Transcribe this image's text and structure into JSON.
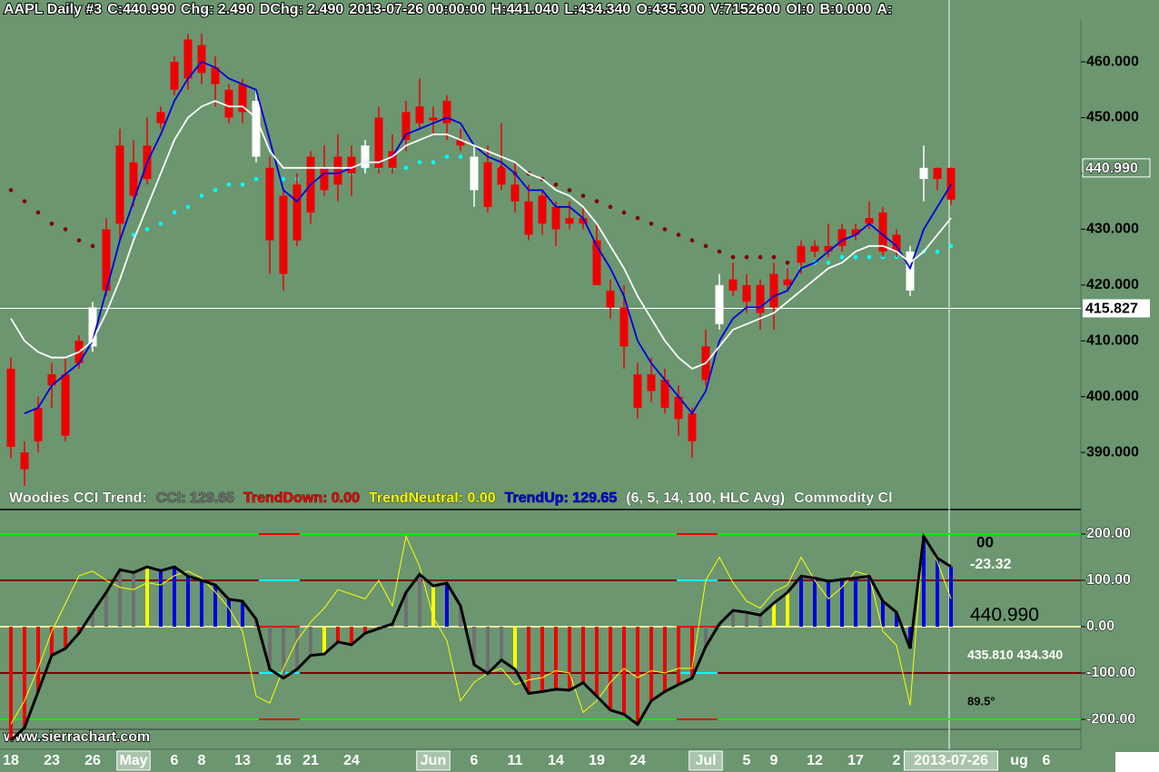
{
  "chart_data": [
    {
      "type": "candlestick",
      "header": [
        "AAPL  Daily  #3",
        "C:440.990",
        "Chg: 2.490",
        "DChg: 2.490",
        "2013-07-26 00:00:00",
        "H:441.040",
        "L:434.340",
        "O:435.300",
        "V:7152600",
        "OI:0",
        "B:0.000",
        "A:"
      ],
      "categories": [
        "18",
        null,
        null,
        "23",
        null,
        null,
        "26",
        null,
        null,
        "May",
        null,
        null,
        "6",
        null,
        "8",
        null,
        null,
        "13",
        null,
        null,
        "16",
        null,
        "21",
        null,
        null,
        "24",
        null,
        null,
        null,
        null,
        null,
        "Jun",
        null,
        null,
        "6",
        null,
        null,
        "11",
        null,
        null,
        "14",
        null,
        null,
        "19",
        null,
        null,
        "24",
        null,
        null,
        null,
        null,
        "Jul",
        null,
        null,
        "5",
        null,
        "9",
        null,
        null,
        "12",
        null,
        null,
        "17",
        null,
        null,
        "2",
        null,
        null,
        null,
        "2013-07-26"
      ],
      "future_labels": [
        "ug",
        "6"
      ],
      "open": [
        391,
        387,
        392,
        402,
        393,
        406,
        416,
        419,
        431,
        436,
        439,
        449,
        455,
        457,
        458,
        456,
        450,
        451,
        453,
        428,
        422,
        428,
        433,
        437,
        438,
        440,
        445,
        441,
        441,
        446,
        449,
        449.5,
        449,
        445,
        443,
        434,
        438,
        435,
        429,
        431,
        430,
        431,
        431,
        420,
        416,
        409,
        398,
        401,
        398,
        396,
        392,
        403,
        420,
        419,
        417,
        415,
        416,
        420,
        424,
        426,
        426,
        427,
        429,
        431,
        426,
        426,
        426,
        441,
        439,
        435.3
      ],
      "high": [
        407,
        392,
        400,
        406,
        407,
        411,
        417,
        432,
        448,
        446,
        450,
        452,
        461,
        465,
        465,
        461,
        456,
        457,
        455,
        443,
        437,
        440,
        444,
        445,
        447,
        445,
        446,
        452,
        447,
        453,
        457,
        452,
        454,
        448,
        445,
        445,
        449,
        442,
        438,
        437,
        435,
        435,
        434,
        431,
        421,
        420,
        406,
        407,
        405,
        402,
        398,
        412,
        422,
        424,
        422,
        421,
        424,
        423,
        428,
        428,
        431,
        431,
        431,
        435,
        434,
        430,
        427,
        445,
        441,
        441.04
      ],
      "low": [
        389,
        384,
        390,
        398,
        392,
        405,
        408,
        418,
        428,
        434,
        438,
        448,
        454,
        455,
        456,
        452,
        449,
        449,
        442,
        422,
        419,
        427,
        431,
        436,
        435,
        436,
        440,
        440,
        440,
        444,
        448,
        447,
        446,
        444,
        434,
        433,
        437,
        433,
        428,
        429,
        427,
        430,
        430,
        420,
        414,
        405,
        396,
        399,
        397,
        393,
        389,
        402,
        412,
        418,
        415,
        412,
        412,
        419,
        422,
        425,
        425,
        426,
        428,
        430,
        425,
        425,
        418,
        435,
        437,
        434.34
      ],
      "close": [
        405,
        390,
        398,
        404,
        404,
        410,
        409,
        430,
        445,
        442,
        445,
        451,
        460,
        464,
        463,
        459,
        455,
        456,
        443,
        441,
        436,
        438,
        443,
        441,
        443,
        443,
        441,
        450,
        444,
        451,
        452,
        450,
        453,
        446,
        437,
        442,
        441,
        438,
        435,
        436,
        434,
        432,
        432,
        428,
        419,
        416,
        404,
        404,
        403,
        400,
        397,
        409,
        413,
        421,
        420,
        420,
        422,
        421,
        427,
        427,
        427,
        430,
        430,
        432,
        433,
        429,
        419,
        439,
        441,
        440.99
      ],
      "up_color": "#ee0000",
      "down_color": "#ffffff",
      "overlays": [
        {
          "color": "#0000dd",
          "style": "line",
          "values": [
            null,
            397,
            398,
            402,
            404,
            406,
            410,
            419,
            428,
            435,
            442,
            447,
            453,
            457,
            460,
            459,
            457,
            456,
            455,
            446,
            437,
            435,
            438,
            440,
            440,
            441,
            442,
            442,
            443,
            447,
            448,
            449,
            450,
            449,
            445,
            443,
            442,
            440,
            437,
            437,
            434,
            434,
            432,
            427,
            423,
            418,
            410,
            406,
            403,
            400,
            397,
            401,
            410,
            414,
            416,
            416,
            418,
            419,
            423,
            424,
            426,
            428,
            429,
            431,
            429,
            427,
            423,
            430,
            434,
            438
          ]
        },
        {
          "color": "#ffffff",
          "style": "line",
          "values": [
            414,
            410,
            408,
            407,
            407,
            408,
            410,
            415,
            421,
            428,
            434,
            440,
            446,
            450,
            452,
            453,
            452,
            452,
            450,
            444,
            441,
            441,
            441,
            441,
            441,
            441,
            442,
            442,
            443,
            445,
            446,
            447,
            447,
            446,
            445,
            444,
            443,
            442,
            440,
            439,
            437,
            436,
            434,
            431,
            427,
            423,
            418,
            414,
            410,
            407,
            405,
            406,
            409,
            412,
            413,
            414,
            415,
            417,
            419,
            421,
            423,
            424,
            426,
            427,
            427,
            426,
            424,
            426,
            429,
            432
          ]
        },
        {
          "color": "#800000",
          "style": "dots",
          "values": [
            437,
            435,
            433,
            431,
            430,
            428,
            427,
            428,
            null,
            null,
            null,
            null,
            null,
            null,
            null,
            null,
            null,
            null,
            null,
            null,
            null,
            null,
            null,
            null,
            null,
            null,
            null,
            null,
            null,
            null,
            null,
            null,
            null,
            null,
            442,
            441,
            441,
            440,
            440,
            439,
            438,
            437,
            436,
            435,
            434,
            433,
            432,
            431,
            430,
            429,
            428,
            427,
            426,
            425,
            425,
            425,
            425,
            424,
            null,
            null,
            null,
            null,
            null,
            null,
            null,
            null,
            null,
            null,
            null,
            null
          ]
        },
        {
          "color": "#00ffff",
          "style": "dots",
          "values": [
            null,
            null,
            null,
            null,
            null,
            null,
            null,
            null,
            null,
            429,
            430,
            431,
            433,
            434,
            436,
            437,
            438,
            438,
            439,
            439,
            439,
            439,
            440,
            440,
            440,
            440,
            441,
            441,
            441,
            441,
            442,
            442,
            443,
            443,
            null,
            null,
            null,
            null,
            null,
            null,
            null,
            null,
            null,
            null,
            null,
            null,
            null,
            null,
            null,
            null,
            null,
            null,
            null,
            null,
            null,
            null,
            null,
            null,
            423,
            424,
            424,
            425,
            425,
            425,
            425,
            425,
            425,
            426,
            426,
            427
          ]
        }
      ],
      "ylim": [
        384,
        467.5
      ],
      "yticks": [
        {
          "value": 460,
          "label": "460.000"
        },
        {
          "value": 450,
          "label": "450.000"
        },
        {
          "value": 440,
          "label": "440.000"
        },
        {
          "value": 430,
          "label": "430.000"
        },
        {
          "value": 420,
          "label": "420.000"
        },
        {
          "value": 410,
          "label": "410.000"
        },
        {
          "value": 400,
          "label": "400.000"
        },
        {
          "value": 390,
          "label": "390.000"
        }
      ],
      "crosshair": {
        "value": 415.827,
        "label": "415.827"
      },
      "last": {
        "value": 440.99,
        "label": "440.990"
      },
      "footer": "www.sierrachart.com"
    },
    {
      "type": "bar",
      "title_items": [
        {
          "text": "Woodies CCI Trend:",
          "color": "#ffffff"
        },
        {
          "text": "CCI: 129.65",
          "color": "#707070"
        },
        {
          "text": "TrendDown: 0.00",
          "color": "#ee0000"
        },
        {
          "text": "TrendNeutral: 0.00",
          "color": "#ffff00"
        },
        {
          "text": "TrendUp: 129.65",
          "color": "#0000dd"
        },
        {
          "text": "(6, 5, 14, 100, HLC Avg)",
          "color": "#ffffff"
        },
        {
          "text": "Commodity Cl",
          "color": "#ffffff"
        }
      ],
      "values": [
        -245,
        -218,
        -140,
        -62,
        -47,
        -14,
        31,
        74,
        123,
        117,
        129,
        121,
        129,
        109,
        100,
        90,
        59,
        55,
        16,
        -92,
        -111,
        -92,
        -62,
        -59,
        -33,
        -39,
        -14,
        -4,
        6,
        74,
        113,
        88,
        94,
        45,
        -82,
        -101,
        -72,
        -92,
        -144,
        -140,
        -135,
        -137,
        -121,
        -150,
        -180,
        -189,
        -211,
        -160,
        -140,
        -125,
        -111,
        -43,
        6,
        35,
        31,
        25,
        51,
        74,
        109,
        105,
        98,
        102,
        105,
        109,
        55,
        31,
        -47,
        195,
        148,
        129.65
      ],
      "bar_colors": [
        "#ee0000",
        "#ee0000",
        "#ee0000",
        "#ee0000",
        "#ee0000",
        "#ee0000",
        "#707070",
        "#707070",
        "#707070",
        "#707070",
        "#ffff00",
        "#0000dd",
        "#0000dd",
        "#0000dd",
        "#0000dd",
        "#0000dd",
        "#0000dd",
        "#0000dd",
        "#707070",
        "#707070",
        "#707070",
        "#707070",
        "#707070",
        "#ffff00",
        "#ee0000",
        "#ee0000",
        "#ee0000",
        "#ee0000",
        "#707070",
        "#707070",
        "#707070",
        "#ffff00",
        "#0000dd",
        "#707070",
        "#707070",
        "#707070",
        "#707070",
        "#ffff00",
        "#ee0000",
        "#ee0000",
        "#ee0000",
        "#ee0000",
        "#ee0000",
        "#ee0000",
        "#ee0000",
        "#ee0000",
        "#ee0000",
        "#ee0000",
        "#ee0000",
        "#ee0000",
        "#ee0000",
        "#707070",
        "#707070",
        "#707070",
        "#707070",
        "#707070",
        "#ffff00",
        "#ffff00",
        "#0000dd",
        "#0000dd",
        "#0000dd",
        "#0000dd",
        "#0000dd",
        "#0000dd",
        "#0000dd",
        "#0000dd",
        "#0000dd",
        "#0000dd",
        "#0000dd",
        "#0000dd"
      ],
      "line_color": "#000000",
      "tcci": {
        "color": "#ffff00",
        "values": [
          -210,
          -160,
          -90,
          -10,
          50,
          110,
          120,
          100,
          85,
          80,
          95,
          90,
          110,
          120,
          105,
          75,
          40,
          -10,
          -150,
          -165,
          -90,
          -30,
          10,
          40,
          80,
          70,
          60,
          100,
          45,
          195,
          130,
          20,
          -30,
          -160,
          -120,
          -100,
          -90,
          -125,
          -115,
          -110,
          -95,
          -100,
          -185,
          -160,
          -120,
          -90,
          -110,
          -95,
          -100,
          -90,
          -90,
          100,
          150,
          95,
          55,
          40,
          75,
          90,
          150,
          100,
          60,
          85,
          120,
          110,
          -10,
          -40,
          -170,
          200,
          140,
          60
        ]
      },
      "ylim": [
        -245,
        245
      ],
      "yticks": [
        {
          "value": 200,
          "label": "200.00"
        },
        {
          "value": 100,
          "label": "100.00"
        },
        {
          "value": 0,
          "label": "0.00"
        },
        {
          "value": -100,
          "label": "-100.00"
        },
        {
          "value": -200,
          "label": "-200.00"
        }
      ],
      "grid_colors": [
        "#00ee00",
        "#800000",
        "#e8e8a0",
        "#800000",
        "#00ee00"
      ],
      "readouts": [
        "00",
        "-23.32",
        "440.990",
        "435.810 434.340",
        "89.5°"
      ]
    }
  ]
}
